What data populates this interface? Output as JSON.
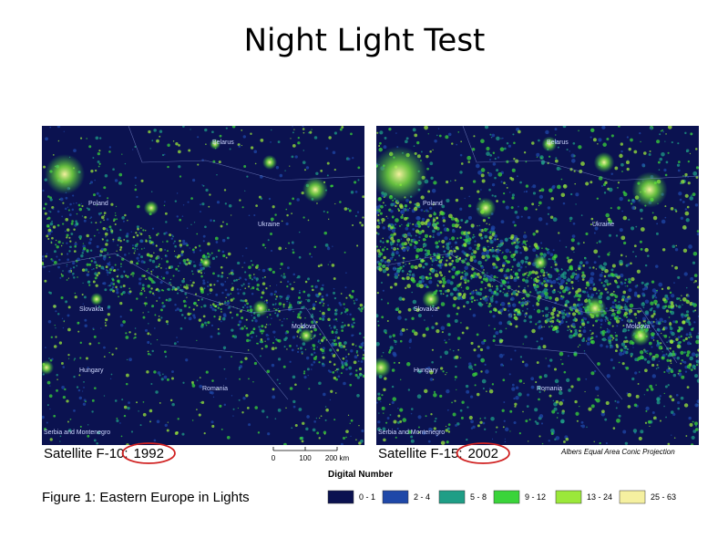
{
  "header": {
    "title": "Night Light Test"
  },
  "maps": [
    {
      "labels": [
        "Belarus",
        "Poland",
        "Ukraine",
        "Slovakia",
        "Moldova",
        "Hungary",
        "Romania",
        "Serbia and Montenegro"
      ],
      "caption": "Satellite F-10:",
      "year": "1992"
    },
    {
      "labels": [
        "Belarus",
        "Poland",
        "Ukraine",
        "Slovakia",
        "Moldova",
        "Hungary",
        "Romania",
        "Serbia and Montenegro"
      ],
      "caption": "Satellite F-15:",
      "year": "2002"
    }
  ],
  "projection": "Albers Equal Area Conic Projection",
  "scale_bar": [
    "0",
    "100",
    "200 km"
  ],
  "figure_caption": "Figure 1: Eastern Europe in Lights",
  "legend": {
    "title": "Digital Number",
    "items": [
      {
        "label": "0 - 1",
        "color": "#0b1250"
      },
      {
        "label": "2 - 4",
        "color": "#1f48a8"
      },
      {
        "label": "5 - 8",
        "color": "#1f9e86"
      },
      {
        "label": "9 - 12",
        "color": "#3ad43a"
      },
      {
        "label": "13 - 24",
        "color": "#9be83a"
      },
      {
        "label": "25 - 63",
        "color": "#f5f0a0"
      }
    ]
  }
}
